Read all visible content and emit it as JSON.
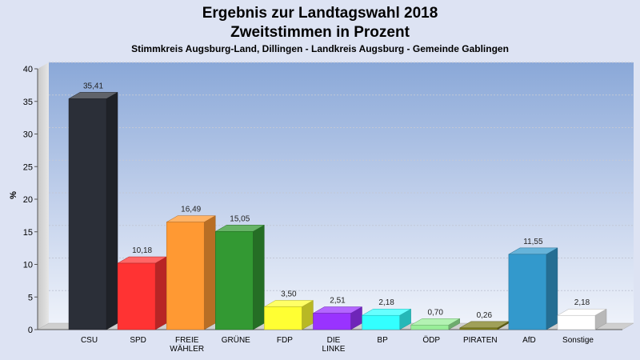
{
  "chart_data": {
    "type": "bar",
    "title": "Ergebnis zur Landtagswahl 2018",
    "title_line2": "Zweitstimmen in Prozent",
    "subtitle": "Stimmkreis Augsburg-Land, Dillingen - Landkreis Augsburg - Gemeinde Gablingen",
    "ylabel": "%",
    "ylim": [
      0,
      40
    ],
    "yticks": [
      0,
      5,
      10,
      15,
      20,
      25,
      30,
      35,
      40
    ],
    "grid": true,
    "categories": [
      [
        "CSU"
      ],
      [
        "SPD"
      ],
      [
        "FREIE",
        "WÄHLER"
      ],
      [
        "GRÜNE"
      ],
      [
        "FDP"
      ],
      [
        "DIE",
        "LINKE"
      ],
      [
        "BP"
      ],
      [
        "ÖDP"
      ],
      [
        "PIRATEN"
      ],
      [
        "AfD"
      ],
      [
        "Sonstige"
      ]
    ],
    "values": [
      35.41,
      10.18,
      16.49,
      15.05,
      3.5,
      2.51,
      2.18,
      0.7,
      0.26,
      11.55,
      2.18
    ],
    "value_labels": [
      "35,41",
      "10,18",
      "16,49",
      "15,05",
      "3,50",
      "2,51",
      "2,18",
      "0,70",
      "0,26",
      "11,55",
      "2,18"
    ],
    "colors": [
      "#2b2f38",
      "#ff3333",
      "#ff9933",
      "#339933",
      "#ffff33",
      "#9933ff",
      "#33ffff",
      "#99ee99",
      "#808020",
      "#3399cc",
      "#ffffff"
    ]
  }
}
